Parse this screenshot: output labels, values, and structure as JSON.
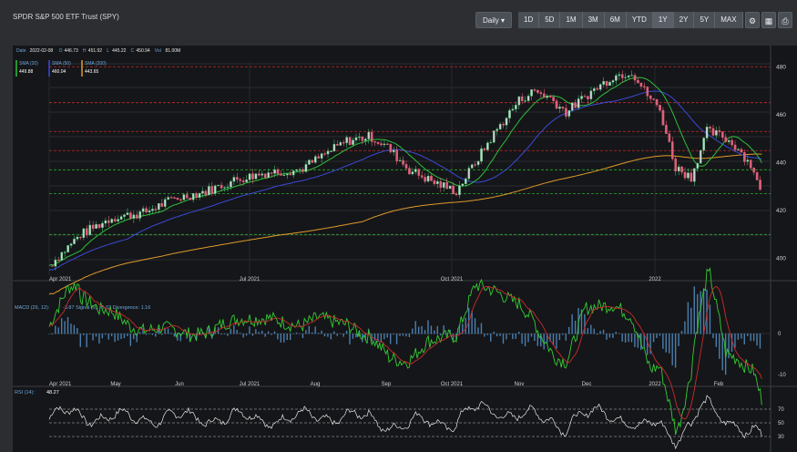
{
  "title": "SPDR S&P 500 ETF Trust (SPY)",
  "interval_button": "Daily ▾",
  "ranges": [
    "1D",
    "5D",
    "1M",
    "3M",
    "6M",
    "YTD",
    "1Y",
    "2Y",
    "5Y",
    "MAX"
  ],
  "active_range": "1Y",
  "tool_icons": [
    "settings-icon",
    "calculator-icon",
    "print-icon"
  ],
  "ohlc": {
    "date_label": "Date",
    "date": "2022-02-08",
    "open_label": "O",
    "open": "446.73",
    "high_label": "H",
    "high": "451.92",
    "low_label": "L",
    "low": "445.22",
    "close_label": "C",
    "close": "450.94",
    "vol_label": "Vol",
    "volume": "81.00M"
  },
  "sma_legend": [
    {
      "label": "SMA (20)",
      "value": "449.88",
      "color": "#2fbf3a"
    },
    {
      "label": "SMA (50)",
      "value": "460.04",
      "color": "#3b49d8"
    },
    {
      "label": "SMA (200)",
      "value": "443.65",
      "color": "#e09a2b"
    }
  ],
  "price_axis": {
    "ticks": [
      "480",
      "460",
      "440",
      "420",
      "400"
    ]
  },
  "price_x_labels": [
    "Apr 2021",
    "Jul 2021",
    "Oct 2021",
    "2022"
  ],
  "macd": {
    "label": "MACD (26, 12):",
    "value": "-3.87",
    "signal_label": "Signal (9):",
    "signal": "-5.03",
    "div_label": "Divergence:",
    "divergence": "1.16",
    "ticks": [
      "0",
      "-10"
    ]
  },
  "month_labels": [
    "Apr 2021",
    "May",
    "Jun",
    "Jul 2021",
    "Aug",
    "Sep",
    "Oct 2021",
    "Nov",
    "Dec",
    "2022",
    "Feb"
  ],
  "rsi": {
    "label": "RSI (14):",
    "value": "48.27",
    "ticks": [
      "70",
      "50",
      "30"
    ]
  },
  "colors": {
    "up": "#3fbf6a",
    "down": "#e0607a",
    "macd": "#33cc33",
    "signal": "#cc2b2b",
    "rsi": "#e6e6e6",
    "grid": "#2a2c30"
  },
  "chart_data": {
    "type": "candlestick",
    "ylim": [
      393,
      482
    ],
    "period": [
      "2021-03-29",
      "2022-02-08"
    ],
    "resistance_lines": [
      480,
      465,
      453,
      445,
      437,
      427,
      410
    ]
  }
}
